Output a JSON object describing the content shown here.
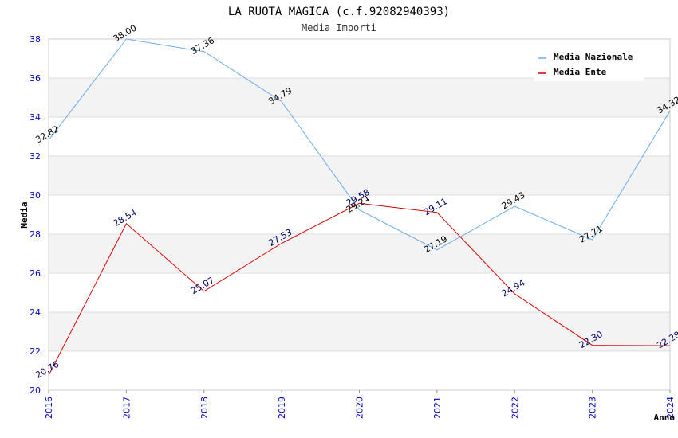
{
  "chart_data": {
    "type": "line",
    "title": "LA RUOTA MAGICA (c.f.92082940393)",
    "subtitle": "Media Importi",
    "xlabel": "Anno",
    "ylabel": "Media",
    "x": [
      "2016",
      "2017",
      "2018",
      "2019",
      "2020",
      "2021",
      "2022",
      "2023",
      "2024"
    ],
    "ylim": [
      20,
      38
    ],
    "yticks": [
      "20",
      "22",
      "24",
      "26",
      "28",
      "30",
      "32",
      "34",
      "36",
      "38"
    ],
    "grid": true,
    "legend_position": "top-right",
    "series": [
      {
        "name": "Media Nazionale",
        "color": "#66aaee",
        "label_color": "#000000",
        "values": [
          32.82,
          38.0,
          37.36,
          34.79,
          29.24,
          27.19,
          29.43,
          27.71,
          34.32
        ],
        "labels": [
          "32.82",
          "38.00",
          "37.36",
          "34.79",
          "29.24",
          "27.19",
          "29.43",
          "27.71",
          "34.32"
        ]
      },
      {
        "name": "Media Ente",
        "color": "#dd0000",
        "label_color": "#000066",
        "values": [
          20.76,
          28.54,
          25.07,
          27.53,
          29.58,
          29.11,
          24.94,
          22.3,
          22.28
        ],
        "labels": [
          "20.76",
          "28.54",
          "25.07",
          "27.53",
          "29.58",
          "29.11",
          "24.94",
          "22.30",
          "22.28"
        ]
      }
    ]
  }
}
